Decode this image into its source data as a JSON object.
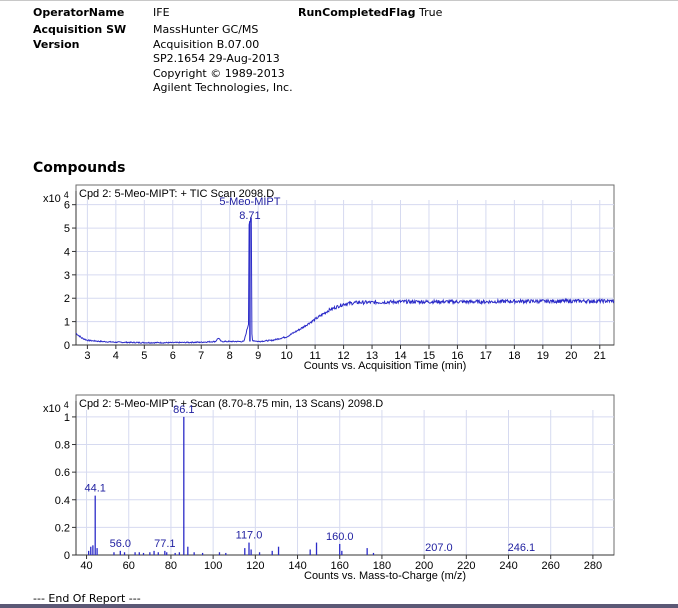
{
  "header": {
    "operator_label": "OperatorName",
    "operator_value": "IFE",
    "run_completed_label": "RunCompletedFlag",
    "run_completed_value": "True",
    "acq_sw_label_line1": "Acquisition SW",
    "acq_sw_label_line2": "Version",
    "acq_sw_lines": [
      "MassHunter GC/MS",
      "Acquisition  B.07.00",
      "SP2.1654  29-Aug-2013",
      "Copyright © 1989-2013",
      "Agilent Technologies, Inc."
    ]
  },
  "section_title": "Compounds",
  "footer": "--- End Of Report ---",
  "colors": {
    "trace": "#2b2bc8",
    "label": "#1f1fa0",
    "grid": "#d6daf0",
    "frame": "#6e6e6e"
  },
  "chart_data": [
    {
      "type": "line",
      "title": "Cpd 2: 5-Meo-MIPT: + TIC Scan 2098.D",
      "xlabel": "Counts vs. Acquisition Time (min)",
      "y_multiplier": "x10 4",
      "xlim": [
        2.6,
        21.5
      ],
      "ylim": [
        0,
        6.2
      ],
      "x_ticks": [
        3,
        4,
        5,
        6,
        7,
        8,
        9,
        10,
        11,
        12,
        13,
        14,
        15,
        16,
        17,
        18,
        19,
        20,
        21
      ],
      "y_ticks": [
        0,
        1,
        2,
        3,
        4,
        5,
        6
      ],
      "grid": true,
      "series": [
        {
          "x": [
            2.6,
            2.8,
            3.0,
            3.5,
            4.0,
            5.0,
            6.0,
            7.0,
            7.5,
            7.6,
            7.7,
            8.0,
            8.5,
            8.68,
            8.71,
            8.74,
            8.8,
            9.0,
            9.5,
            10.0,
            10.5,
            11.0,
            11.5,
            12.0,
            12.5,
            13.0,
            14.0,
            15.0,
            16.0,
            17.0,
            18.0,
            19.0,
            20.0,
            21.0,
            21.5
          ],
          "y": [
            0.5,
            0.3,
            0.2,
            0.15,
            0.12,
            0.1,
            0.1,
            0.12,
            0.15,
            0.3,
            0.15,
            0.15,
            0.15,
            1.0,
            5.3,
            1.0,
            0.2,
            0.15,
            0.2,
            0.35,
            0.7,
            1.1,
            1.5,
            1.75,
            1.82,
            1.82,
            1.85,
            1.85,
            1.85,
            1.85,
            1.87,
            1.87,
            1.88,
            1.88,
            1.88
          ]
        }
      ],
      "annotations": [
        {
          "x": 8.71,
          "y": 5.3,
          "lines": [
            "5-Meo-MIPT",
            "8.71"
          ]
        }
      ]
    },
    {
      "type": "bar",
      "title": "Cpd 2: 5-Meo-MIPT: + Scan (8.70-8.75 min, 13 Scans) 2098.D",
      "xlabel": "Counts vs. Mass-to-Charge (m/z)",
      "y_multiplier": "x10 4",
      "xlim": [
        35,
        290
      ],
      "ylim": [
        0,
        1.05
      ],
      "x_ticks": [
        40,
        60,
        80,
        100,
        120,
        140,
        160,
        180,
        200,
        220,
        240,
        260,
        280
      ],
      "y_ticks": [
        0,
        0.2,
        0.4,
        0.6,
        0.8,
        1
      ],
      "y_tick_labels": [
        "0",
        "0.2",
        "0.4",
        "0.6",
        "0.8",
        "1"
      ],
      "grid": true,
      "x": [
        41,
        42,
        43,
        44.1,
        45,
        53,
        56,
        58,
        63,
        65,
        67,
        70,
        72,
        74,
        77.1,
        78,
        82,
        84,
        86.1,
        88,
        91,
        95,
        103,
        106,
        115,
        117,
        118,
        122,
        128,
        131,
        146,
        149,
        160,
        161,
        173,
        176
      ],
      "values": [
        0.03,
        0.06,
        0.07,
        0.43,
        0.05,
        0.02,
        0.03,
        0.02,
        0.02,
        0.02,
        0.015,
        0.02,
        0.03,
        0.02,
        0.03,
        0.02,
        0.015,
        0.02,
        1.0,
        0.06,
        0.02,
        0.015,
        0.02,
        0.015,
        0.05,
        0.09,
        0.04,
        0.02,
        0.03,
        0.06,
        0.04,
        0.09,
        0.08,
        0.03,
        0.05,
        0.015
      ],
      "peak_labels": [
        {
          "x": 44.1,
          "y": 0.43,
          "text": "44.1"
        },
        {
          "x": 56.0,
          "y": 0.03,
          "text": "56.0"
        },
        {
          "x": 77.1,
          "y": 0.03,
          "text": "77.1"
        },
        {
          "x": 86.1,
          "y": 1.0,
          "text": "86.1"
        },
        {
          "x": 117.0,
          "y": 0.09,
          "text": "117.0"
        },
        {
          "x": 160.0,
          "y": 0.08,
          "text": "160.0"
        },
        {
          "x": 207.0,
          "y": 0.0,
          "text": "207.0"
        },
        {
          "x": 246.1,
          "y": 0.0,
          "text": "246.1"
        }
      ]
    }
  ]
}
